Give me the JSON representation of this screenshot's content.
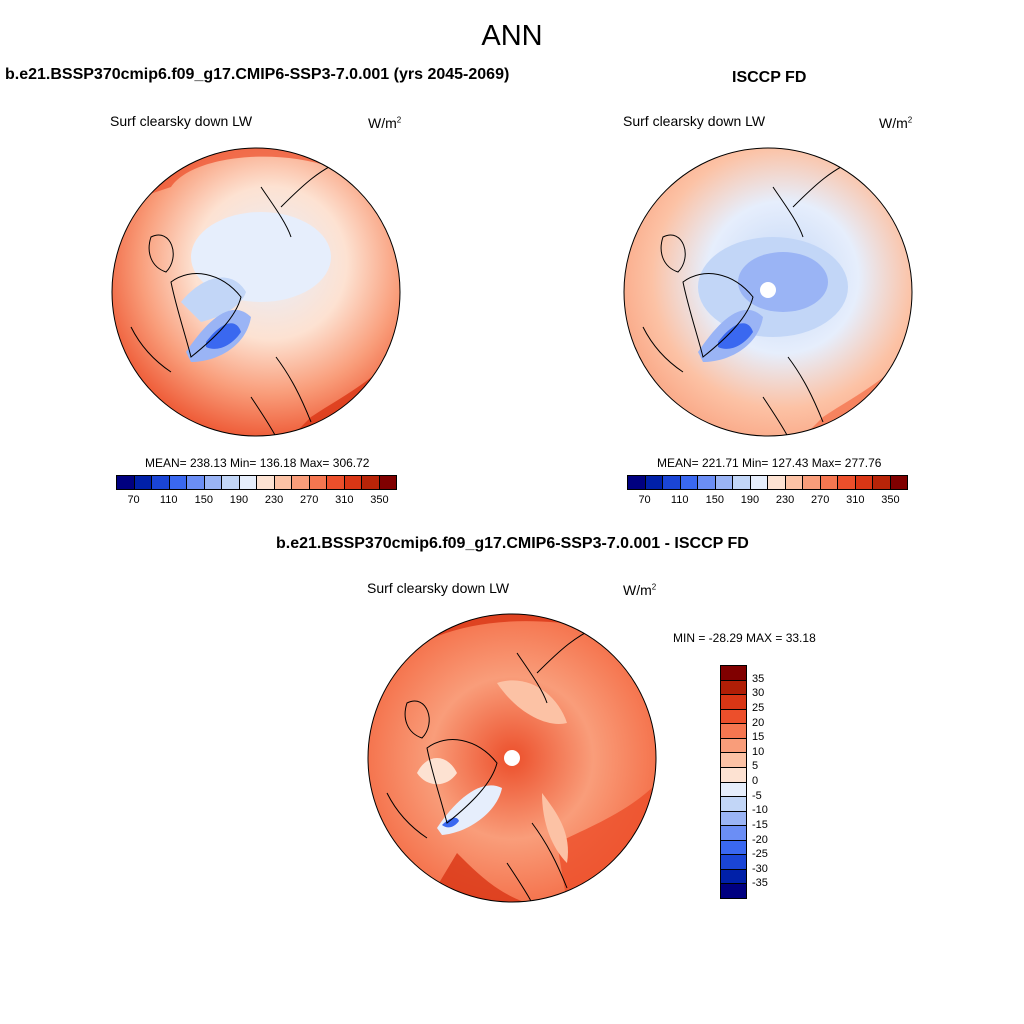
{
  "season": "ANN",
  "panels": [
    {
      "title": "b.e21.BSSP370cmip6.f09_g17.CMIP6-SSP3-7.0.001 (yrs 2045-2069)",
      "variable": "Surf clearsky down LW",
      "units_base": "W/m",
      "units_exp": "2",
      "stats": "MEAN= 238.13  Min= 136.18  Max= 306.72"
    },
    {
      "title": "ISCCP FD",
      "variable": "Surf clearsky down LW",
      "units_base": "W/m",
      "units_exp": "2",
      "stats": "MEAN= 221.71  Min= 127.43  Max= 277.76"
    }
  ],
  "diff_panel": {
    "title": "b.e21.BSSP370cmip6.f09_g17.CMIP6-SSP3-7.0.001 - ISCCP FD",
    "variable": "Surf clearsky down LW",
    "units_base": "W/m",
    "units_exp": "2",
    "stats": "MIN = -28.29 MAX =  33.18"
  },
  "colorbar_main": {
    "colors": [
      "#000080",
      "#0020a8",
      "#1a45d6",
      "#3a68f0",
      "#6b8ef5",
      "#9ab4f5",
      "#c2d6f7",
      "#e6eefc",
      "#fde2d2",
      "#fcc2a5",
      "#f99d7a",
      "#f57650",
      "#ec4f2b",
      "#d93615",
      "#b82408",
      "#800000"
    ],
    "tick_labels": [
      "70",
      "110",
      "150",
      "190",
      "230",
      "270",
      "310",
      "350"
    ]
  },
  "colorbar_diff": {
    "colors": [
      "#800000",
      "#b01e06",
      "#d93615",
      "#ec4f2b",
      "#f57650",
      "#f99d7a",
      "#fcc2a5",
      "#fde2d2",
      "#e6eefc",
      "#c2d6f7",
      "#9ab4f5",
      "#6b8ef5",
      "#3a68f0",
      "#1a45d6",
      "#0020a8",
      "#000080"
    ],
    "tick_labels": [
      "35",
      "30",
      "25",
      "20",
      "15",
      "10",
      "5",
      "0",
      "-5",
      "-10",
      "-15",
      "-20",
      "-25",
      "-30",
      "-35"
    ]
  }
}
